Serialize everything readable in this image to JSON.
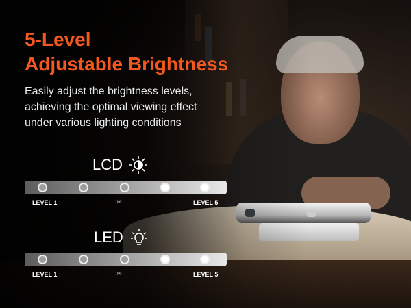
{
  "headline": {
    "line1": "5-Level",
    "line2": "Adjustable Brightness"
  },
  "description": [
    "Easily adjust the brightness levels,",
    "achieving the optimal viewing effect",
    "under various lighting conditions"
  ],
  "sliders": [
    {
      "name": "LCD",
      "icon": "half-sun-icon",
      "levels": 5,
      "start_label": "LEVEL 1",
      "end_label": "LEVEL 5",
      "arrows": "›››"
    },
    {
      "name": "LED",
      "icon": "lightbulb-icon",
      "levels": 5,
      "start_label": "LEVEL 1",
      "end_label": "LEVEL 5",
      "arrows": "›››"
    }
  ],
  "colors": {
    "accent": "#f4581f"
  }
}
